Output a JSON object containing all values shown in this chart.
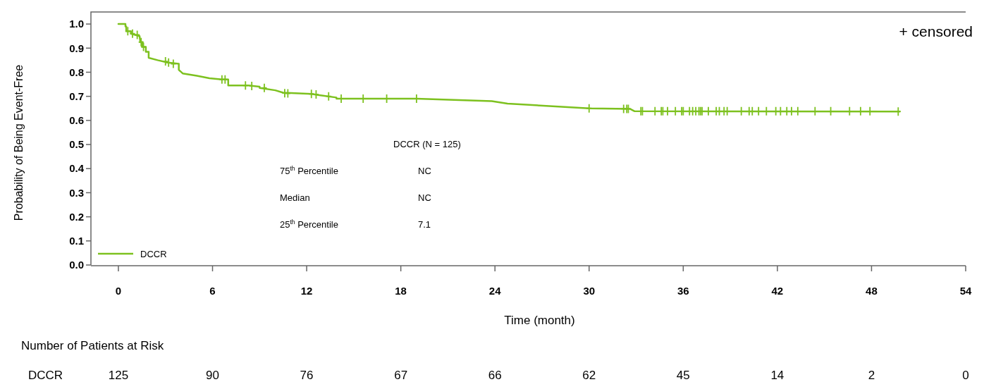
{
  "chart_data": {
    "type": "line",
    "xlabel": "Time (month)",
    "ylabel": "Probability of Being Event-Free",
    "xlim": [
      -1.75,
      54
    ],
    "xticks": [
      0,
      6,
      12,
      18,
      24,
      30,
      36,
      42,
      48,
      54
    ],
    "ylim": [
      0,
      1.05
    ],
    "yticks": [
      {
        "value": 0,
        "label": "0.0"
      },
      {
        "value": 0.1,
        "label": "0.1"
      },
      {
        "value": 0.2,
        "label": "0.2"
      },
      {
        "value": 0.3,
        "label": "0.3"
      },
      {
        "value": 0.4,
        "label": "0.4"
      },
      {
        "value": 0.5,
        "label": "0.5"
      },
      {
        "value": 0.6,
        "label": "0.6"
      },
      {
        "value": 0.7,
        "label": "0.7"
      },
      {
        "value": 0.8,
        "label": "0.8"
      },
      {
        "value": 0.9,
        "label": "0.9"
      },
      {
        "value": 1,
        "label": "1.0"
      }
    ],
    "legend": "bottom left",
    "series": [
      {
        "name": "DCCR",
        "color": "#7dc11f",
        "x": [
          0,
          0.45,
          0.45,
          0.5,
          0.5,
          0.8,
          0.8,
          1.35,
          1.4,
          1.53,
          1.53,
          1.75,
          1.75,
          1.93,
          1.93,
          2.5,
          3.15,
          3.85,
          3.85,
          4.1,
          5,
          5.8,
          6.6,
          7,
          7,
          8.3,
          9,
          9,
          10,
          10.5,
          12.3,
          12.8,
          13.9,
          13.9,
          19,
          23.8,
          24.8,
          30,
          32.6,
          32.9,
          49.8
        ],
        "values": [
          1,
          1,
          0.99,
          0.99,
          0.97,
          0.97,
          0.96,
          0.95,
          0.925,
          0.925,
          0.905,
          0.905,
          0.885,
          0.885,
          0.86,
          0.85,
          0.84,
          0.835,
          0.81,
          0.795,
          0.785,
          0.775,
          0.77,
          0.77,
          0.745,
          0.745,
          0.74,
          0.735,
          0.725,
          0.715,
          0.71,
          0.705,
          0.695,
          0.69,
          0.69,
          0.68,
          0.67,
          0.65,
          0.648,
          0.638,
          0.637
        ]
      },
      {
        "type": "scatter",
        "marker": "cross",
        "color": "#7dc11f",
        "x": [
          0.6,
          0.9,
          1.2,
          1.45,
          1.6,
          3.0,
          3.2,
          3.5,
          6.6,
          6.8,
          8.1,
          8.5,
          9.3,
          10.6,
          10.8,
          12.3,
          12.6,
          13.4,
          14.2,
          15.6,
          17.1,
          19.0,
          30.0,
          32.2,
          32.4,
          32.5,
          33.3,
          33.4,
          34.2,
          34.6,
          34.7,
          35.0,
          35.5,
          35.9,
          36.0,
          36.4,
          36.6,
          36.8,
          37.0,
          37.1,
          37.2,
          37.6,
          38.1,
          38.3,
          38.6,
          38.8,
          39.7,
          40.2,
          40.4,
          40.8,
          41.3,
          41.9,
          42.2,
          42.6,
          42.9,
          43.3,
          44.4,
          45.4,
          46.6,
          47.3,
          47.9,
          49.7
        ],
        "values": [
          0.97,
          0.96,
          0.955,
          0.925,
          0.905,
          0.845,
          0.84,
          0.835,
          0.77,
          0.77,
          0.745,
          0.743,
          0.735,
          0.713,
          0.712,
          0.71,
          0.708,
          0.7,
          0.69,
          0.69,
          0.69,
          0.69,
          0.65,
          0.648,
          0.648,
          0.648,
          0.638,
          0.638,
          0.638,
          0.638,
          0.638,
          0.638,
          0.638,
          0.638,
          0.638,
          0.638,
          0.638,
          0.638,
          0.638,
          0.638,
          0.638,
          0.638,
          0.638,
          0.638,
          0.638,
          0.638,
          0.638,
          0.638,
          0.638,
          0.638,
          0.638,
          0.638,
          0.638,
          0.638,
          0.638,
          0.638,
          0.638,
          0.638,
          0.638,
          0.638,
          0.638,
          0.637
        ]
      }
    ],
    "annotations": [
      "+ censored",
      "DCCR (N = 125)",
      "75$^{th}$ Percentile",
      "NC",
      "Median",
      "NC",
      "25$^{th}$ Percentile",
      "7.1",
      "Number of Patients at Risk",
      "DCCR",
      "125",
      "90",
      "76",
      "67",
      "66",
      "62",
      "45",
      "14",
      "2",
      "0"
    ]
  }
}
